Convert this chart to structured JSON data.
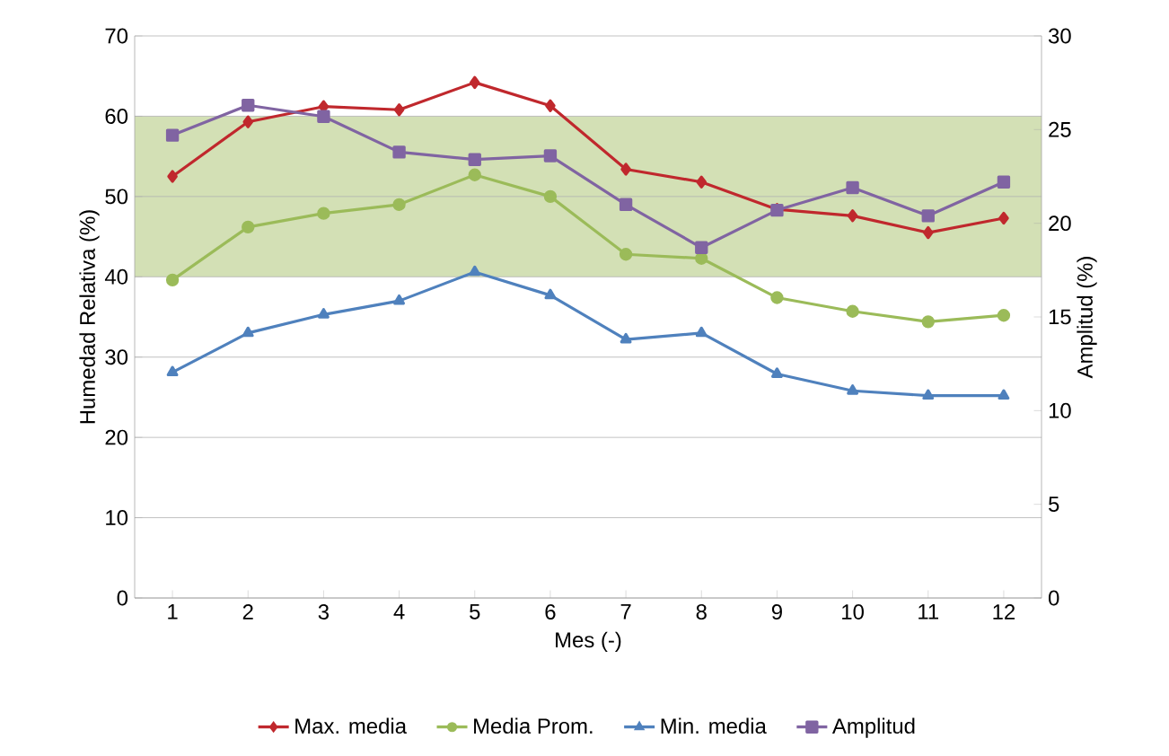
{
  "chart_data": {
    "type": "line",
    "xlabel": "Mes (-)",
    "ylabel": "Humedad Relativa (%)",
    "y2label": "Amplitud (%)",
    "categories": [
      "1",
      "2",
      "3",
      "4",
      "5",
      "6",
      "7",
      "8",
      "9",
      "10",
      "11",
      "12"
    ],
    "series": [
      {
        "name": "Max. media",
        "color": "#c0282d",
        "marker": "diamond",
        "values": [
          52.5,
          59.3,
          61.2,
          60.8,
          64.2,
          61.3,
          53.4,
          51.8,
          48.4,
          47.6,
          45.5,
          47.3
        ]
      },
      {
        "name": "Media Prom.",
        "color": "#9bbb59",
        "marker": "circle",
        "values": [
          39.6,
          46.2,
          47.9,
          49.0,
          52.7,
          50.0,
          42.8,
          42.3,
          37.4,
          35.7,
          34.4,
          35.2
        ]
      },
      {
        "name": "Min. media",
        "color": "#4f81bd",
        "marker": "triangle",
        "values": [
          28.1,
          33.0,
          35.3,
          37.0,
          40.6,
          37.7,
          32.2,
          33.0,
          27.9,
          25.8,
          25.2,
          25.2
        ]
      },
      {
        "name": "Amplitud",
        "color": "#8064a2",
        "marker": "square",
        "axis": "y2",
        "values": [
          24.7,
          26.3,
          25.7,
          23.8,
          23.4,
          23.6,
          21.0,
          18.7,
          20.7,
          21.9,
          20.4,
          22.2
        ]
      }
    ],
    "ylim": [
      0,
      70
    ],
    "yticks": [
      0,
      10,
      20,
      30,
      40,
      50,
      60,
      70
    ],
    "y2lim": [
      0,
      30
    ],
    "y2ticks": [
      0,
      5,
      10,
      15,
      20,
      25,
      30
    ],
    "bands": [
      {
        "axis": "y",
        "from": 40,
        "to": 60,
        "color": "#d3e0b5"
      }
    ],
    "grid": "y",
    "legend": "bottom"
  }
}
